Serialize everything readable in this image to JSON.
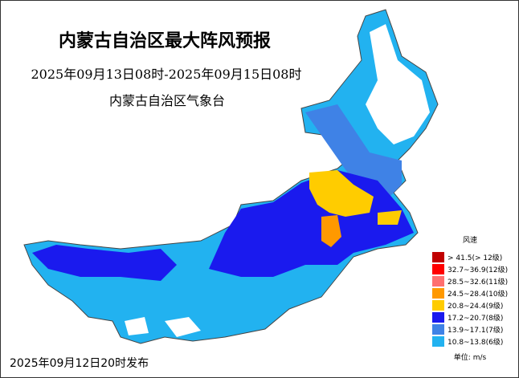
{
  "header": {
    "title": "内蒙古自治区最大阵风预报",
    "period": "2025年09月13日08时-2025年09月15日08时",
    "issuer": "内蒙古自治区气象台"
  },
  "legend": {
    "title": "风速",
    "unit": "单位: m/s",
    "items": [
      {
        "label": "> 41.5(> 12级)",
        "color": "#c00000"
      },
      {
        "label": "32.7~36.9(12级)",
        "color": "#ff0000"
      },
      {
        "label": "28.5~32.6(11级)",
        "color": "#ff7070"
      },
      {
        "label": "24.5~28.4(10级)",
        "color": "#ff9900"
      },
      {
        "label": "20.8~24.4(9级)",
        "color": "#ffcc00"
      },
      {
        "label": "17.2~20.7(8级)",
        "color": "#1a1aee"
      },
      {
        "label": "13.9~17.1(7级)",
        "color": "#3f82e6"
      },
      {
        "label": "10.8~13.8(6级)",
        "color": "#22b2f0"
      }
    ]
  },
  "footer": {
    "issued": "2025年09月12日20时发布"
  }
}
